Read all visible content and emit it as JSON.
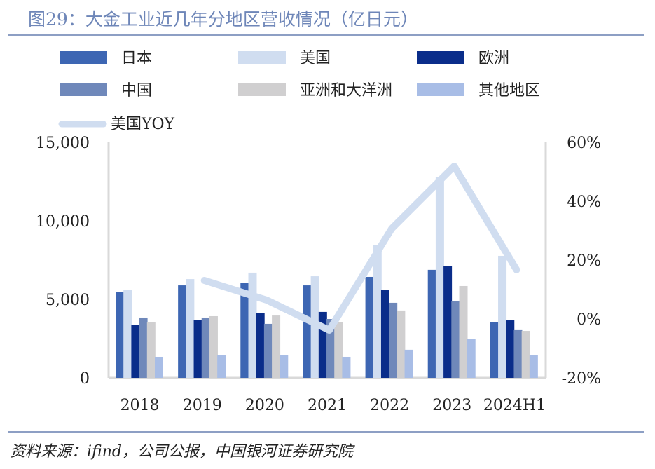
{
  "title": "图29：大金工业近几年分地区营收情况（亿日元）",
  "source": "资料来源：ifind，公司公报，中国银河证券研究院",
  "chart_data": {
    "type": "bar",
    "categories": [
      "2018",
      "2019",
      "2020",
      "2021",
      "2022",
      "2023",
      "2024H1"
    ],
    "series": [
      {
        "name": "日本",
        "color": "#3d66b3",
        "values": [
          5450,
          5890,
          6030,
          5890,
          6430,
          6880,
          3570
        ]
      },
      {
        "name": "美国",
        "color": "#d0ddf0",
        "values": [
          5580,
          6290,
          6700,
          6470,
          8440,
          12810,
          7770
        ]
      },
      {
        "name": "欧洲",
        "color": "#0a2d8a",
        "values": [
          3350,
          3700,
          4110,
          4200,
          5580,
          7140,
          3660
        ]
      },
      {
        "name": "中国",
        "color": "#6f88ba",
        "values": [
          3840,
          3840,
          3440,
          3750,
          4780,
          4870,
          3040
        ]
      },
      {
        "name": "亚洲和大洋洲",
        "color": "#d0cfd0",
        "values": [
          3530,
          3930,
          3970,
          3570,
          4290,
          5850,
          2990
        ]
      },
      {
        "name": "其他地区",
        "color": "#a8bde6",
        "values": [
          1340,
          1430,
          1470,
          1340,
          1790,
          2500,
          1430
        ]
      }
    ],
    "line_series": {
      "name": "美国YOY",
      "color": "#d0ddf0",
      "values": [
        null,
        13.1,
        6.4,
        -3.8,
        30.7,
        51.9,
        16.7
      ]
    },
    "y_left": {
      "lim": [
        0,
        15000
      ],
      "ticks": [
        0,
        5000,
        10000,
        15000
      ],
      "tick_labels": [
        "0",
        "5,000",
        "10,000",
        "15,000"
      ]
    },
    "y_right": {
      "lim": [
        -20,
        60
      ],
      "ticks": [
        -20,
        0,
        20,
        40,
        60
      ],
      "tick_labels": [
        "-20%",
        "0%",
        "20%",
        "40%",
        "60%"
      ]
    },
    "legend_position": "top"
  }
}
